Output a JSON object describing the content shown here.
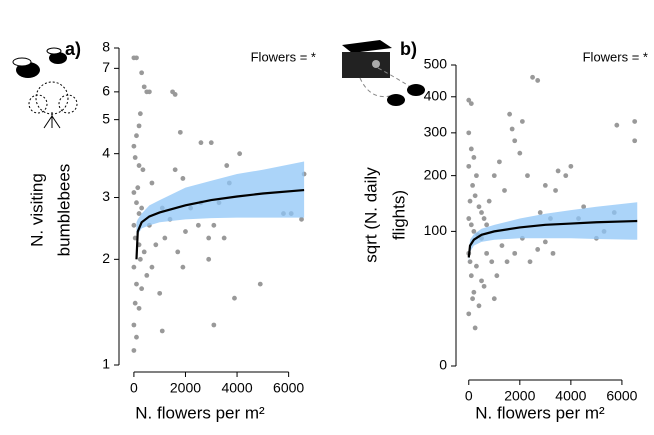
{
  "chart_data": [
    {
      "type": "scatter",
      "panel_label": "a)",
      "annotation": "Flowers = *",
      "ylabel": [
        "N. visiting",
        "bumblebees"
      ],
      "xlabel": "N. flowers per m²",
      "yscale": "log",
      "xlim": [
        -500,
        7100
      ],
      "ylim": [
        1,
        8
      ],
      "xticks": [
        0,
        2000,
        4000,
        6000
      ],
      "yticks": [
        1,
        2,
        3,
        4,
        5,
        6,
        7,
        8
      ],
      "points": {
        "color": "#999999",
        "x": [
          0,
          100,
          300,
          400,
          500,
          600,
          1500,
          1600,
          250,
          200,
          100,
          0,
          50,
          200,
          350,
          1600,
          1800,
          2600,
          3000,
          4100,
          3600,
          700,
          150,
          0,
          100,
          300,
          200,
          1900,
          2200,
          2600,
          3300,
          3700,
          6600,
          1100,
          1400,
          2000,
          2900,
          3100,
          2500,
          6500,
          0,
          50,
          200,
          400,
          600,
          850,
          700,
          0,
          100,
          300,
          50,
          200,
          0,
          100,
          0,
          1000,
          1100,
          1900,
          2900,
          3100,
          3500,
          3900,
          4900,
          5800,
          6100,
          250,
          500,
          1200,
          1700
        ],
        "y": [
          7.5,
          7.5,
          6.8,
          6.2,
          6.0,
          6.0,
          6.0,
          5.9,
          5.2,
          4.8,
          4.5,
          4.2,
          3.9,
          3.7,
          3.6,
          3.6,
          4.6,
          4.3,
          4.3,
          4.0,
          3.7,
          3.3,
          3.2,
          3.1,
          2.9,
          2.8,
          2.7,
          3.4,
          2.8,
          2.9,
          2.9,
          3.3,
          3.5,
          2.8,
          2.6,
          2.4,
          2.3,
          2.5,
          2.5,
          2.6,
          2.5,
          2.3,
          2.2,
          2.1,
          2.5,
          2.2,
          1.9,
          1.9,
          1.7,
          1.65,
          1.5,
          1.45,
          1.3,
          1.2,
          1.1,
          1.6,
          1.25,
          1.9,
          2.0,
          1.3,
          2.3,
          1.55,
          1.7,
          2.7,
          2.7,
          2.0,
          1.8,
          2.3,
          2.1
        ]
      },
      "band": {
        "color": "#8fc6f7",
        "x": [
          100,
          150,
          300,
          600,
          1000,
          2000,
          3000,
          4000,
          5000,
          6600
        ],
        "lower": [
          2.3,
          2.35,
          2.45,
          2.5,
          2.55,
          2.6,
          2.62,
          2.63,
          2.63,
          2.63
        ],
        "upper": [
          2.55,
          2.6,
          2.7,
          2.85,
          2.95,
          3.2,
          3.35,
          3.5,
          3.6,
          3.8
        ]
      },
      "fit": {
        "color": "#000000",
        "x": [
          100,
          150,
          300,
          600,
          1000,
          2000,
          3000,
          4000,
          5000,
          6600
        ],
        "y": [
          2.0,
          2.4,
          2.55,
          2.65,
          2.72,
          2.85,
          2.95,
          3.02,
          3.08,
          3.15
        ]
      }
    },
    {
      "type": "scatter",
      "panel_label": "b)",
      "annotation": "Flowers = *",
      "ylabel": [
        "sqrt (N. daily",
        "flights)"
      ],
      "xlabel": "N. flowers per m²",
      "yscale": "sqrt",
      "xlim": [
        -500,
        7100
      ],
      "ylim": [
        0,
        500
      ],
      "xticks": [
        0,
        2000,
        4000,
        6000
      ],
      "yticks": [
        0,
        100,
        200,
        300,
        400,
        500
      ],
      "points": {
        "color": "#999999",
        "x": [
          0,
          100,
          0,
          100,
          200,
          0,
          300,
          150,
          50,
          250,
          400,
          500,
          600,
          0,
          100,
          200,
          350,
          500,
          700,
          800,
          1000,
          1200,
          1400,
          1600,
          1700,
          1800,
          2000,
          2100,
          2300,
          2500,
          2700,
          2800,
          3000,
          3200,
          3400,
          3500,
          3800,
          4000,
          4300,
          4500,
          5000,
          5300,
          5700,
          6500,
          6500,
          5800,
          0,
          50,
          100,
          200,
          0,
          300,
          500,
          700,
          900,
          1100,
          1300,
          1500,
          1800,
          2100,
          2400,
          2700,
          3000,
          3300,
          150,
          400,
          600,
          1000,
          250
        ],
        "y": [
          390,
          380,
          300,
          260,
          240,
          220,
          200,
          180,
          150,
          160,
          140,
          130,
          120,
          120,
          110,
          100,
          95,
          90,
          110,
          150,
          200,
          230,
          170,
          350,
          310,
          280,
          250,
          330,
          200,
          460,
          450,
          130,
          180,
          120,
          170,
          210,
          200,
          220,
          120,
          140,
          90,
          100,
          130,
          330,
          280,
          320,
          70,
          60,
          45,
          30,
          15,
          55,
          40,
          70,
          60,
          45,
          80,
          60,
          70,
          90,
          60,
          75,
          85,
          70,
          25,
          20,
          35,
          25,
          8
        ]
      },
      "band": {
        "color": "#8fc6f7",
        "x": [
          0,
          50,
          200,
          500,
          1000,
          2000,
          3000,
          4000,
          5000,
          6600
        ],
        "lower": [
          60,
          72,
          80,
          85,
          88,
          90,
          90,
          90,
          89,
          88
        ],
        "upper": [
          70,
          88,
          96,
          104,
          110,
          120,
          128,
          134,
          140,
          148
        ]
      },
      "fit": {
        "color": "#000000",
        "x": [
          0,
          50,
          200,
          500,
          1000,
          2000,
          3000,
          4000,
          5000,
          6600
        ],
        "y": [
          65,
          80,
          88,
          95,
          100,
          106,
          110,
          112,
          114,
          116
        ]
      }
    }
  ]
}
